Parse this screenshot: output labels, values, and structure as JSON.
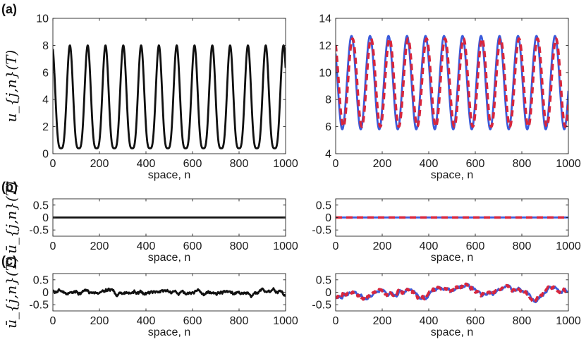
{
  "panel_labels": [
    "(a)",
    "(b)",
    "(c)"
  ],
  "colors": {
    "black": "#111111",
    "blue": "#3b5bdb",
    "red": "#d7263d"
  },
  "chart_data": [
    {
      "id": "a-left",
      "type": "line",
      "row": "a",
      "col": "left",
      "xlabel": "space, n",
      "ylabel": "u_{j,n}(T)",
      "xlim": [
        0,
        1000
      ],
      "ylim": [
        0,
        10
      ],
      "xticks": [
        0,
        200,
        400,
        600,
        800,
        1000
      ],
      "yticks": [
        0,
        2,
        4,
        6,
        8,
        10
      ],
      "series": [
        {
          "style": "solid-black",
          "wave": {
            "period": 76.5,
            "phase": 0.28,
            "min": 0.4,
            "max": 8.0,
            "sharp": 1.8
          }
        }
      ]
    },
    {
      "id": "a-right",
      "type": "line",
      "row": "a",
      "col": "right",
      "xlabel": "space, n",
      "ylabel": "",
      "xlim": [
        0,
        1000
      ],
      "ylim": [
        4,
        14
      ],
      "xticks": [
        0,
        200,
        400,
        600,
        800,
        1000
      ],
      "yticks": [
        4,
        6,
        8,
        10,
        12,
        14
      ],
      "series": [
        {
          "style": "solid-blue",
          "wave": {
            "period": 79.5,
            "phase": 0.9,
            "min": 5.8,
            "max": 12.7,
            "sharp": 1.0
          }
        },
        {
          "style": "dashed-red",
          "wave": {
            "period": 79.5,
            "phase": 0.55,
            "min": 6.0,
            "max": 12.5,
            "sharp": 1.0
          }
        }
      ]
    },
    {
      "id": "b-left",
      "type": "line",
      "row": "b",
      "col": "left",
      "xlabel": "space, n",
      "ylabel": "ū_{j,n}(T)",
      "xlim": [
        0,
        1000
      ],
      "ylim": [
        -0.75,
        0.75
      ],
      "xticks": [
        0,
        200,
        400,
        600,
        800,
        1000
      ],
      "yticks": [
        -0.5,
        0,
        0.5
      ],
      "series": [
        {
          "style": "solid-black",
          "constant": 0
        }
      ]
    },
    {
      "id": "b-right",
      "type": "line",
      "row": "b",
      "col": "right",
      "xlabel": "space, n",
      "ylabel": "",
      "xlim": [
        0,
        1000
      ],
      "ylim": [
        -0.75,
        0.75
      ],
      "xticks": [
        0,
        200,
        400,
        600,
        800,
        1000
      ],
      "yticks": [
        -0.5,
        0,
        0.5
      ],
      "series": [
        {
          "style": "solid-blue",
          "constant": 0
        },
        {
          "style": "dashed-red",
          "constant": 0
        }
      ]
    },
    {
      "id": "c-left",
      "type": "line",
      "row": "c",
      "col": "left",
      "xlabel": "space, n",
      "ylabel": "ū_{j,n}(T)",
      "xlim": [
        0,
        1000
      ],
      "ylim": [
        -0.75,
        0.75
      ],
      "xticks": [
        0,
        200,
        400,
        600,
        800,
        1000
      ],
      "yticks": [
        -0.5,
        0,
        0.5
      ],
      "series": [
        {
          "style": "solid-black",
          "noise": {
            "seed": 7,
            "amp": 0.2,
            "smooth": 4
          }
        }
      ]
    },
    {
      "id": "c-right",
      "type": "line",
      "row": "c",
      "col": "right",
      "xlabel": "space, n",
      "ylabel": "",
      "xlim": [
        0,
        1000
      ],
      "ylim": [
        -0.75,
        0.75
      ],
      "xticks": [
        0,
        200,
        400,
        600,
        800,
        1000
      ],
      "yticks": [
        -0.5,
        0,
        0.5
      ],
      "series": [
        {
          "style": "solid-blue",
          "noise": {
            "seed": 11,
            "amp": 0.4,
            "smooth": 14
          }
        },
        {
          "style": "dashed-red",
          "noise": {
            "seed": 11,
            "amp": 0.4,
            "smooth": 14,
            "offset": 3
          }
        }
      ]
    }
  ]
}
